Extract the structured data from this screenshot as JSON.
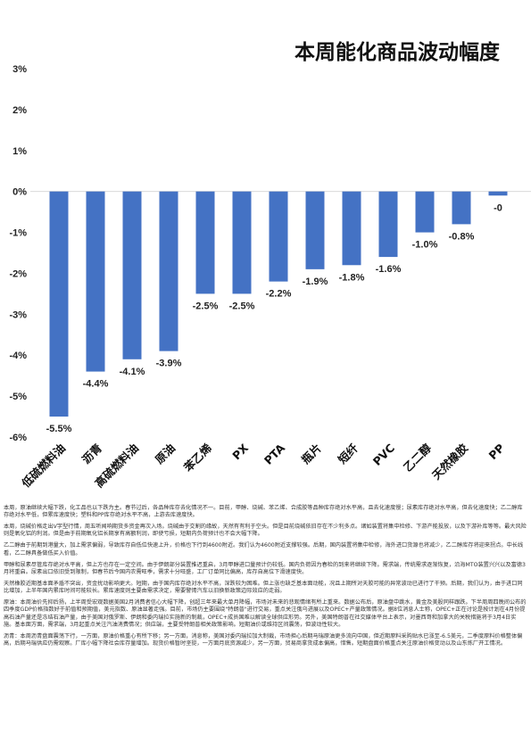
{
  "chart_data": {
    "type": "bar",
    "title": "本周能化商品波动幅度",
    "categories": [
      "低硫燃料油",
      "沥青",
      "高硫燃料油",
      "原油",
      "苯乙烯",
      "PX",
      "PTA",
      "瓶片",
      "短纤",
      "PVC",
      "乙二醇",
      "天然橡胶",
      "PP"
    ],
    "values": [
      -5.5,
      -4.4,
      -4.1,
      -3.9,
      -2.5,
      -2.5,
      -2.2,
      -1.9,
      -1.8,
      -1.6,
      -1.0,
      -0.8,
      -0.1
    ],
    "data_labels": [
      "-5.5%",
      "-4.4%",
      "-4.1%",
      "-3.9%",
      "-2.5%",
      "-2.5%",
      "-2.2%",
      "-1.9%",
      "-1.8%",
      "-1.6%",
      "-1.0%",
      "-0.8%",
      "-0"
    ],
    "yticks": [
      "3%",
      "2%",
      "1%",
      "0%",
      "-1%",
      "-2%",
      "-3%",
      "-4%",
      "-5%",
      "-6%"
    ],
    "ylim": [
      -6,
      3
    ],
    "grid": false,
    "bar_color": "#4472c4"
  },
  "notes": [
    "本周，原油继续大幅下跌，化工品也以下跌为主。春节过后，各品种库存去化情况不一。目前，甲醇、烧碱、苯乙烯、合成胶等品种库存绝对水平高，且去化速度慢；尿素库存绝对水平高，但去化速度快；乙二醇库存绝对水平低，但累库速度快；塑料和PP库存绝对水平不高，上游去库速度快。",
    "本周，烧碱价格走出V字型行情，周五听闻响期货多资金再次入场。烧碱由于交割的缘故，天然有有利于空头。但是目前烧碱依旧存在不少利多点。诸如装置将集中检修、下游产能投放，以及下游补库等等。最大风险则是氧化铝的利润。但是由于前期氧化铝长期享有高额利润，即使亏损，短期内负荷预计也不会大幅下降。",
    "乙二醇由于前期到港量大，加上需求偏弱，导致库存自低位快速上升，价格也下行到4600附近。我们认为4600附近支撑较强。后期，国内装置将集中检修，海外进口货源也将减少，乙二醇库存将迎来拐点。中长线看，乙二醇具备做低买入价值。",
    "甲醇和尿素尽管库存绝对水平高，但上方也存在一定空间。由于伊朗部分装置推迟重启，3月甲醇进口量预计仍较低。国内负荷因为春检的到来将继续下降。需求端，传统需求逐渐恢复，沿海MTO装置兴兴以及富德3月将重启。尿素出口依旧受到限制，但春节后今国内农需旺季，需求十分旺盛，工厂订单同比偏高，库存自高位下滑速度快。",
    "天然橡胶近期基本面矛盾不突出，资金扰动影响更大。短期，由于国内库存绝对水平不高，深跌较为困难。但上涨也缺乏基本面动能，况且上期所对天胶可能的异常波动已进行了干预。后期，我们认为，由于进口同比增加，上半年国内累库时间可能较长。累库速度则主要由需求决定，需要警惕汽车以旧换新政策边际效应的走弱。",
    "原油：本周油价先抑后扬，上半周受宏观数据美国2月消费者信心大幅下降，创超三年来最大单月降幅，市场对未来的悲观情绪有所上重来。数据公布后，原油盘中跳水，黄金及美股同样跟跌。下半周周四晚间公布的四季度GDP价格指数好于前值和预期值，美元指数、原油显著走强。目前，市场仍主要围绕\"特朗普\"进行交易，重点关注俄乌进展以及OPEC+产量政策情况。据8位消息人士称，OPEC+正在讨论是按计划在4月份提高石油产量还是冻结石油产量，由于美国对俄罗斯、伊朗和委内瑞拉实施新的制裁，OPEC+成员国难以解读全球供应形势。另外，美国特朗普在社交媒体平台上表示，对墨西哥和加拿大的关税措施将于3月4日实施。基本面方面，需求端，3月起重点关注汽油消费情况；供应端，主要受特朗普相关政策影响。短期油价或维持区间震荡，但波动性较大。",
    "沥青：本周沥青盘面震荡下行，一方面，原油价格重心有所下移；另一方面，消息称，美国对委内瑞拉加大制裁，市场担心后期马瑞原油更多流向中国，但近期原料采购贴水已涨至-6.5美元，二季度原料价格整体偏高，后期马瑞供应仍需观察。厂库小幅下降社会库存量增加。现货价格暂时坚挺，一方面月底资源减少，另一方面，贸易商拿货成本偏高，惜售。短期盘面价格重点关注原油价格变动以及山东炼厂开工情况。"
  ]
}
